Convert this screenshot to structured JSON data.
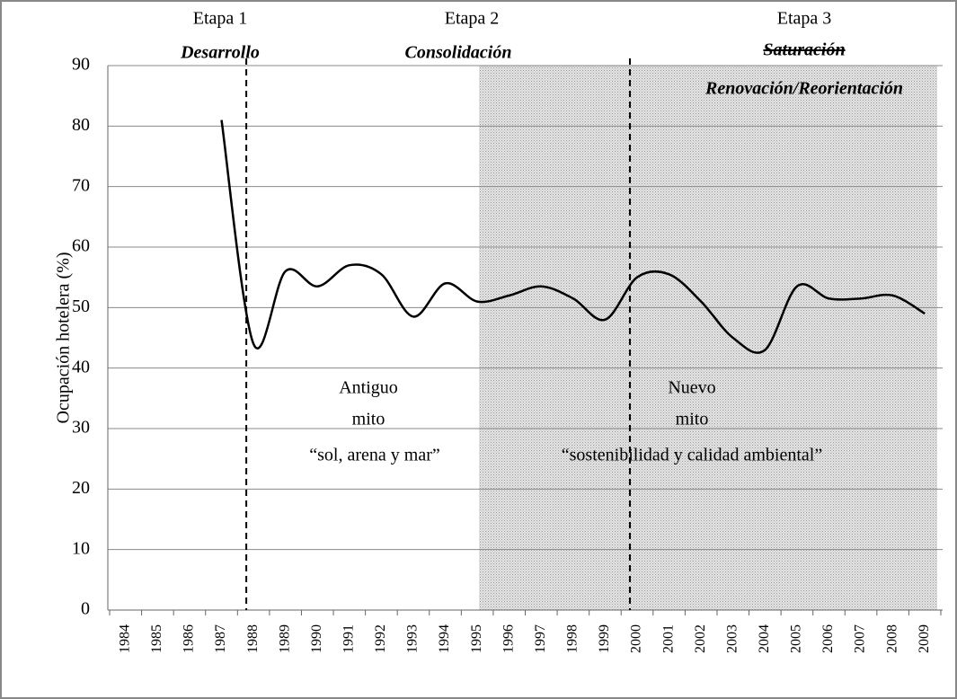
{
  "chart_data": {
    "type": "line",
    "y_label": "Ocupación hotelera  (%)",
    "categories": [
      "1984",
      "1985",
      "1986",
      "1987",
      "1988",
      "1989",
      "1990",
      "1991",
      "1992",
      "1993",
      "1994",
      "1995",
      "1996",
      "1997",
      "1998",
      "1999",
      "2000",
      "2001",
      "2002",
      "2003",
      "2004",
      "2005",
      "2006",
      "2007",
      "2008",
      "2009"
    ],
    "values": [
      null,
      null,
      null,
      81,
      44,
      56,
      53.5,
      57,
      55.5,
      48.5,
      54,
      51,
      52,
      53.5,
      51.5,
      48,
      55,
      55.5,
      51,
      45,
      43,
      53.5,
      51.5,
      51.5,
      52,
      49
    ],
    "color": "#000000",
    "ylim": [
      0,
      90
    ],
    "yticks": [
      0,
      10,
      20,
      30,
      40,
      50,
      60,
      70,
      80,
      90
    ],
    "grid": true,
    "annotations": [
      "Etapa 1",
      "Desarrollo",
      "Etapa 2",
      "Consolidación",
      "Etapa 3",
      "Saturación",
      "Renovación/Reorientación",
      "Antiguo",
      "mito",
      "Nuevo",
      "mito",
      "“sol, arena y mar”",
      "“sostenibilidad y calidad ambiental”"
    ]
  }
}
